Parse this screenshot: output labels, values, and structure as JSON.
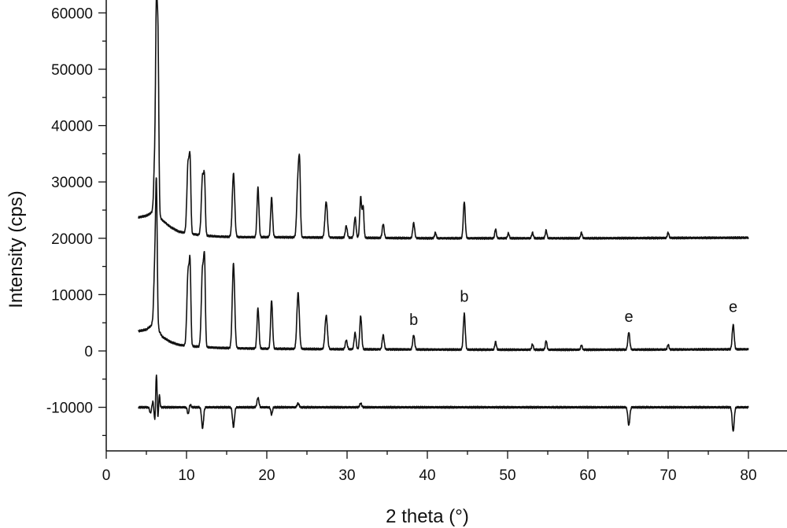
{
  "chart_data": {
    "type": "line",
    "title": "",
    "xlabel": "2 theta (°)",
    "ylabel": "Intensity  (cps)",
    "xlim": [
      0,
      80
    ],
    "ylim": [
      -18000,
      62000
    ],
    "xticks": [
      "0",
      "10",
      "20",
      "30",
      "40",
      "50",
      "60",
      "70",
      "80"
    ],
    "yticks": [
      "-10000",
      "0",
      "10000",
      "20000",
      "30000",
      "40000",
      "50000",
      "60000"
    ],
    "grid": false,
    "legend": "none",
    "line_color": "#111111",
    "annotations": [
      {
        "text": "b",
        "x": 38.3,
        "y": 3200
      },
      {
        "text": "b",
        "x": 44.6,
        "y": 7300
      },
      {
        "text": "e",
        "x": 65.1,
        "y": 3800
      },
      {
        "text": "e",
        "x": 78.1,
        "y": 5500
      }
    ],
    "series": [
      {
        "baseline": [
          [
            4,
            23700
          ],
          [
            5,
            24000
          ],
          [
            5.6,
            24500
          ],
          [
            6.05,
            25500
          ],
          [
            6.6,
            23800
          ],
          [
            7,
            23200
          ],
          [
            8,
            22000
          ],
          [
            9,
            21200
          ],
          [
            10,
            20900
          ],
          [
            12,
            20500
          ],
          [
            14,
            20300
          ],
          [
            17,
            20200
          ],
          [
            20,
            20200
          ],
          [
            25,
            20150
          ],
          [
            30,
            20100
          ],
          [
            35,
            20050
          ],
          [
            40,
            20000
          ],
          [
            50,
            20000
          ],
          [
            60,
            20000
          ],
          [
            70,
            20050
          ],
          [
            80,
            20100
          ]
        ],
        "peaks": [
          [
            6.05,
            34000,
            0.12
          ],
          [
            6.25,
            57500,
            0.1
          ],
          [
            6.45,
            53000,
            0.1
          ],
          [
            10.2,
            33500,
            0.15
          ],
          [
            10.45,
            31500,
            0.1
          ],
          [
            12.0,
            31000,
            0.15
          ],
          [
            12.25,
            28500,
            0.1
          ],
          [
            15.85,
            31500,
            0.15
          ],
          [
            18.9,
            29000,
            0.12
          ],
          [
            20.6,
            27200,
            0.12
          ],
          [
            23.9,
            31000,
            0.15
          ],
          [
            24.1,
            29500,
            0.1
          ],
          [
            27.4,
            26500,
            0.15
          ],
          [
            29.9,
            22200,
            0.12
          ],
          [
            31.0,
            23700,
            0.12
          ],
          [
            31.7,
            27300,
            0.12
          ],
          [
            32.0,
            25500,
            0.1
          ],
          [
            34.5,
            22500,
            0.12
          ],
          [
            38.3,
            22700,
            0.12
          ],
          [
            41.0,
            21000,
            0.1
          ],
          [
            44.6,
            26500,
            0.12
          ],
          [
            48.5,
            21600,
            0.1
          ],
          [
            50.1,
            20900,
            0.1
          ],
          [
            53.1,
            21000,
            0.1
          ],
          [
            54.8,
            21400,
            0.1
          ],
          [
            59.2,
            21000,
            0.1
          ],
          [
            70.0,
            21000,
            0.1
          ]
        ]
      },
      {
        "baseline": [
          [
            4,
            3500
          ],
          [
            5,
            3800
          ],
          [
            5.6,
            4500
          ],
          [
            6.05,
            6000
          ],
          [
            6.6,
            3500
          ],
          [
            7,
            2500
          ],
          [
            8,
            1600
          ],
          [
            9,
            1100
          ],
          [
            10,
            900
          ],
          [
            12,
            700
          ],
          [
            14,
            550
          ],
          [
            17,
            450
          ],
          [
            20,
            400
          ],
          [
            25,
            350
          ],
          [
            30,
            300
          ],
          [
            35,
            280
          ],
          [
            40,
            250
          ],
          [
            50,
            220
          ],
          [
            60,
            220
          ],
          [
            70,
            250
          ],
          [
            80,
            300
          ]
        ],
        "peaks": [
          [
            6.05,
            15000,
            0.12
          ],
          [
            6.25,
            28000,
            0.1
          ],
          [
            10.2,
            14200,
            0.15
          ],
          [
            10.45,
            12800,
            0.1
          ],
          [
            12.0,
            14700,
            0.15
          ],
          [
            12.25,
            13500,
            0.1
          ],
          [
            15.85,
            15500,
            0.15
          ],
          [
            18.9,
            7600,
            0.12
          ],
          [
            20.6,
            9000,
            0.12
          ],
          [
            23.9,
            10300,
            0.15
          ],
          [
            27.4,
            6300,
            0.15
          ],
          [
            29.9,
            1900,
            0.12
          ],
          [
            31.0,
            3200,
            0.12
          ],
          [
            31.7,
            6200,
            0.12
          ],
          [
            34.5,
            2800,
            0.12
          ],
          [
            38.3,
            2800,
            0.12
          ],
          [
            44.6,
            6600,
            0.12
          ],
          [
            48.5,
            1600,
            0.1
          ],
          [
            53.1,
            1200,
            0.1
          ],
          [
            54.8,
            1800,
            0.1
          ],
          [
            59.2,
            1000,
            0.1
          ],
          [
            65.1,
            3300,
            0.12
          ],
          [
            70.0,
            1100,
            0.1
          ],
          [
            78.1,
            4700,
            0.12
          ]
        ]
      },
      {
        "baseline": [
          [
            4,
            -10000
          ],
          [
            80,
            -10000
          ]
        ],
        "peaks": [
          [
            5.5,
            -11000,
            0.1
          ],
          [
            5.8,
            -9000,
            0.08
          ],
          [
            6.05,
            -12300,
            0.08
          ],
          [
            6.25,
            -4000,
            0.08
          ],
          [
            6.45,
            -12300,
            0.08
          ],
          [
            6.6,
            -7500,
            0.08
          ],
          [
            10.2,
            -11200,
            0.1
          ],
          [
            10.45,
            -9500,
            0.1
          ],
          [
            12.0,
            -13700,
            0.12
          ],
          [
            15.85,
            -13500,
            0.12
          ],
          [
            18.9,
            -8300,
            0.12
          ],
          [
            20.6,
            -11300,
            0.1
          ],
          [
            23.9,
            -9300,
            0.12
          ],
          [
            31.7,
            -9300,
            0.12
          ],
          [
            65.1,
            -13200,
            0.12
          ],
          [
            78.1,
            -14300,
            0.12
          ]
        ]
      }
    ]
  }
}
